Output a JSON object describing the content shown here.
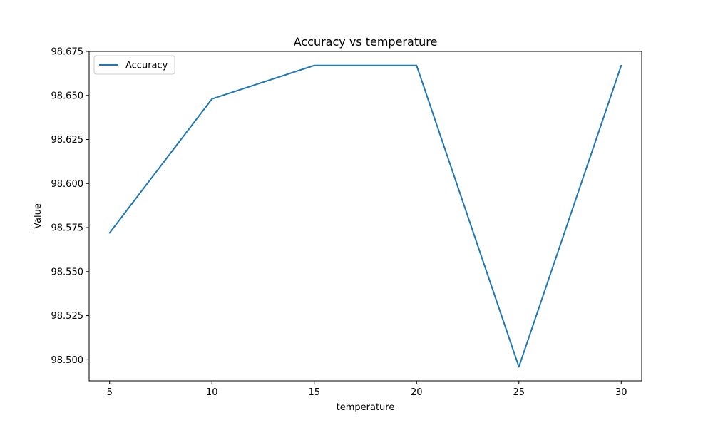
{
  "chart_data": {
    "type": "line",
    "title": "Accuracy vs temperature",
    "xlabel": "temperature",
    "ylabel": "Value",
    "xlim": [
      4.0,
      31.0
    ],
    "ylim": [
      98.488,
      98.675
    ],
    "xticks": [
      5,
      10,
      15,
      20,
      25,
      30
    ],
    "yticks": [
      98.5,
      98.525,
      98.55,
      98.575,
      98.6,
      98.625,
      98.65,
      98.675
    ],
    "ytick_labels": [
      "98.500",
      "98.525",
      "98.550",
      "98.575",
      "98.600",
      "98.625",
      "98.650",
      "98.675"
    ],
    "grid": false,
    "legend_position": "top-left",
    "series": [
      {
        "name": "Accuracy",
        "color": "#1f77b4",
        "x": [
          5,
          10,
          15,
          20,
          25,
          30
        ],
        "y": [
          98.572,
          98.648,
          98.667,
          98.667,
          98.496,
          98.667
        ]
      }
    ]
  }
}
